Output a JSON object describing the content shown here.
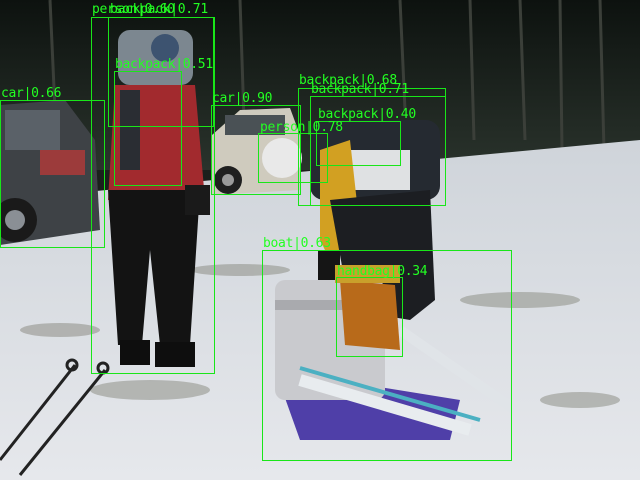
{
  "image": {
    "description_role": "object-detection-output",
    "box_color": "#19e619",
    "label_color": "#22ff22"
  },
  "detections": [
    {
      "label": "person",
      "score": "0.60",
      "text": "person|0.60"
    },
    {
      "label": "backpack",
      "score": "0.71",
      "text": "backpack|0.71"
    },
    {
      "label": "backpack",
      "score": "0.51",
      "text": "backpack|0.51"
    },
    {
      "label": "car",
      "score": "0.66",
      "text": "car|0.66"
    },
    {
      "label": "car",
      "score": "0.90",
      "text": "car|0.90"
    },
    {
      "label": "backpack",
      "score": "0.68",
      "text": "backpack|0.68"
    },
    {
      "label": "backpack",
      "score": "0.71",
      "text": "backpack|0.71"
    },
    {
      "label": "backpack",
      "score": "0.40",
      "text": "backpack|0.40"
    },
    {
      "label": "person",
      "score": "0.78",
      "text": "person|0.78"
    },
    {
      "label": "boat",
      "score": "0.63",
      "text": "boat|0.63"
    },
    {
      "label": "handbag",
      "score": "0.34",
      "text": "handbag|0.34"
    }
  ]
}
